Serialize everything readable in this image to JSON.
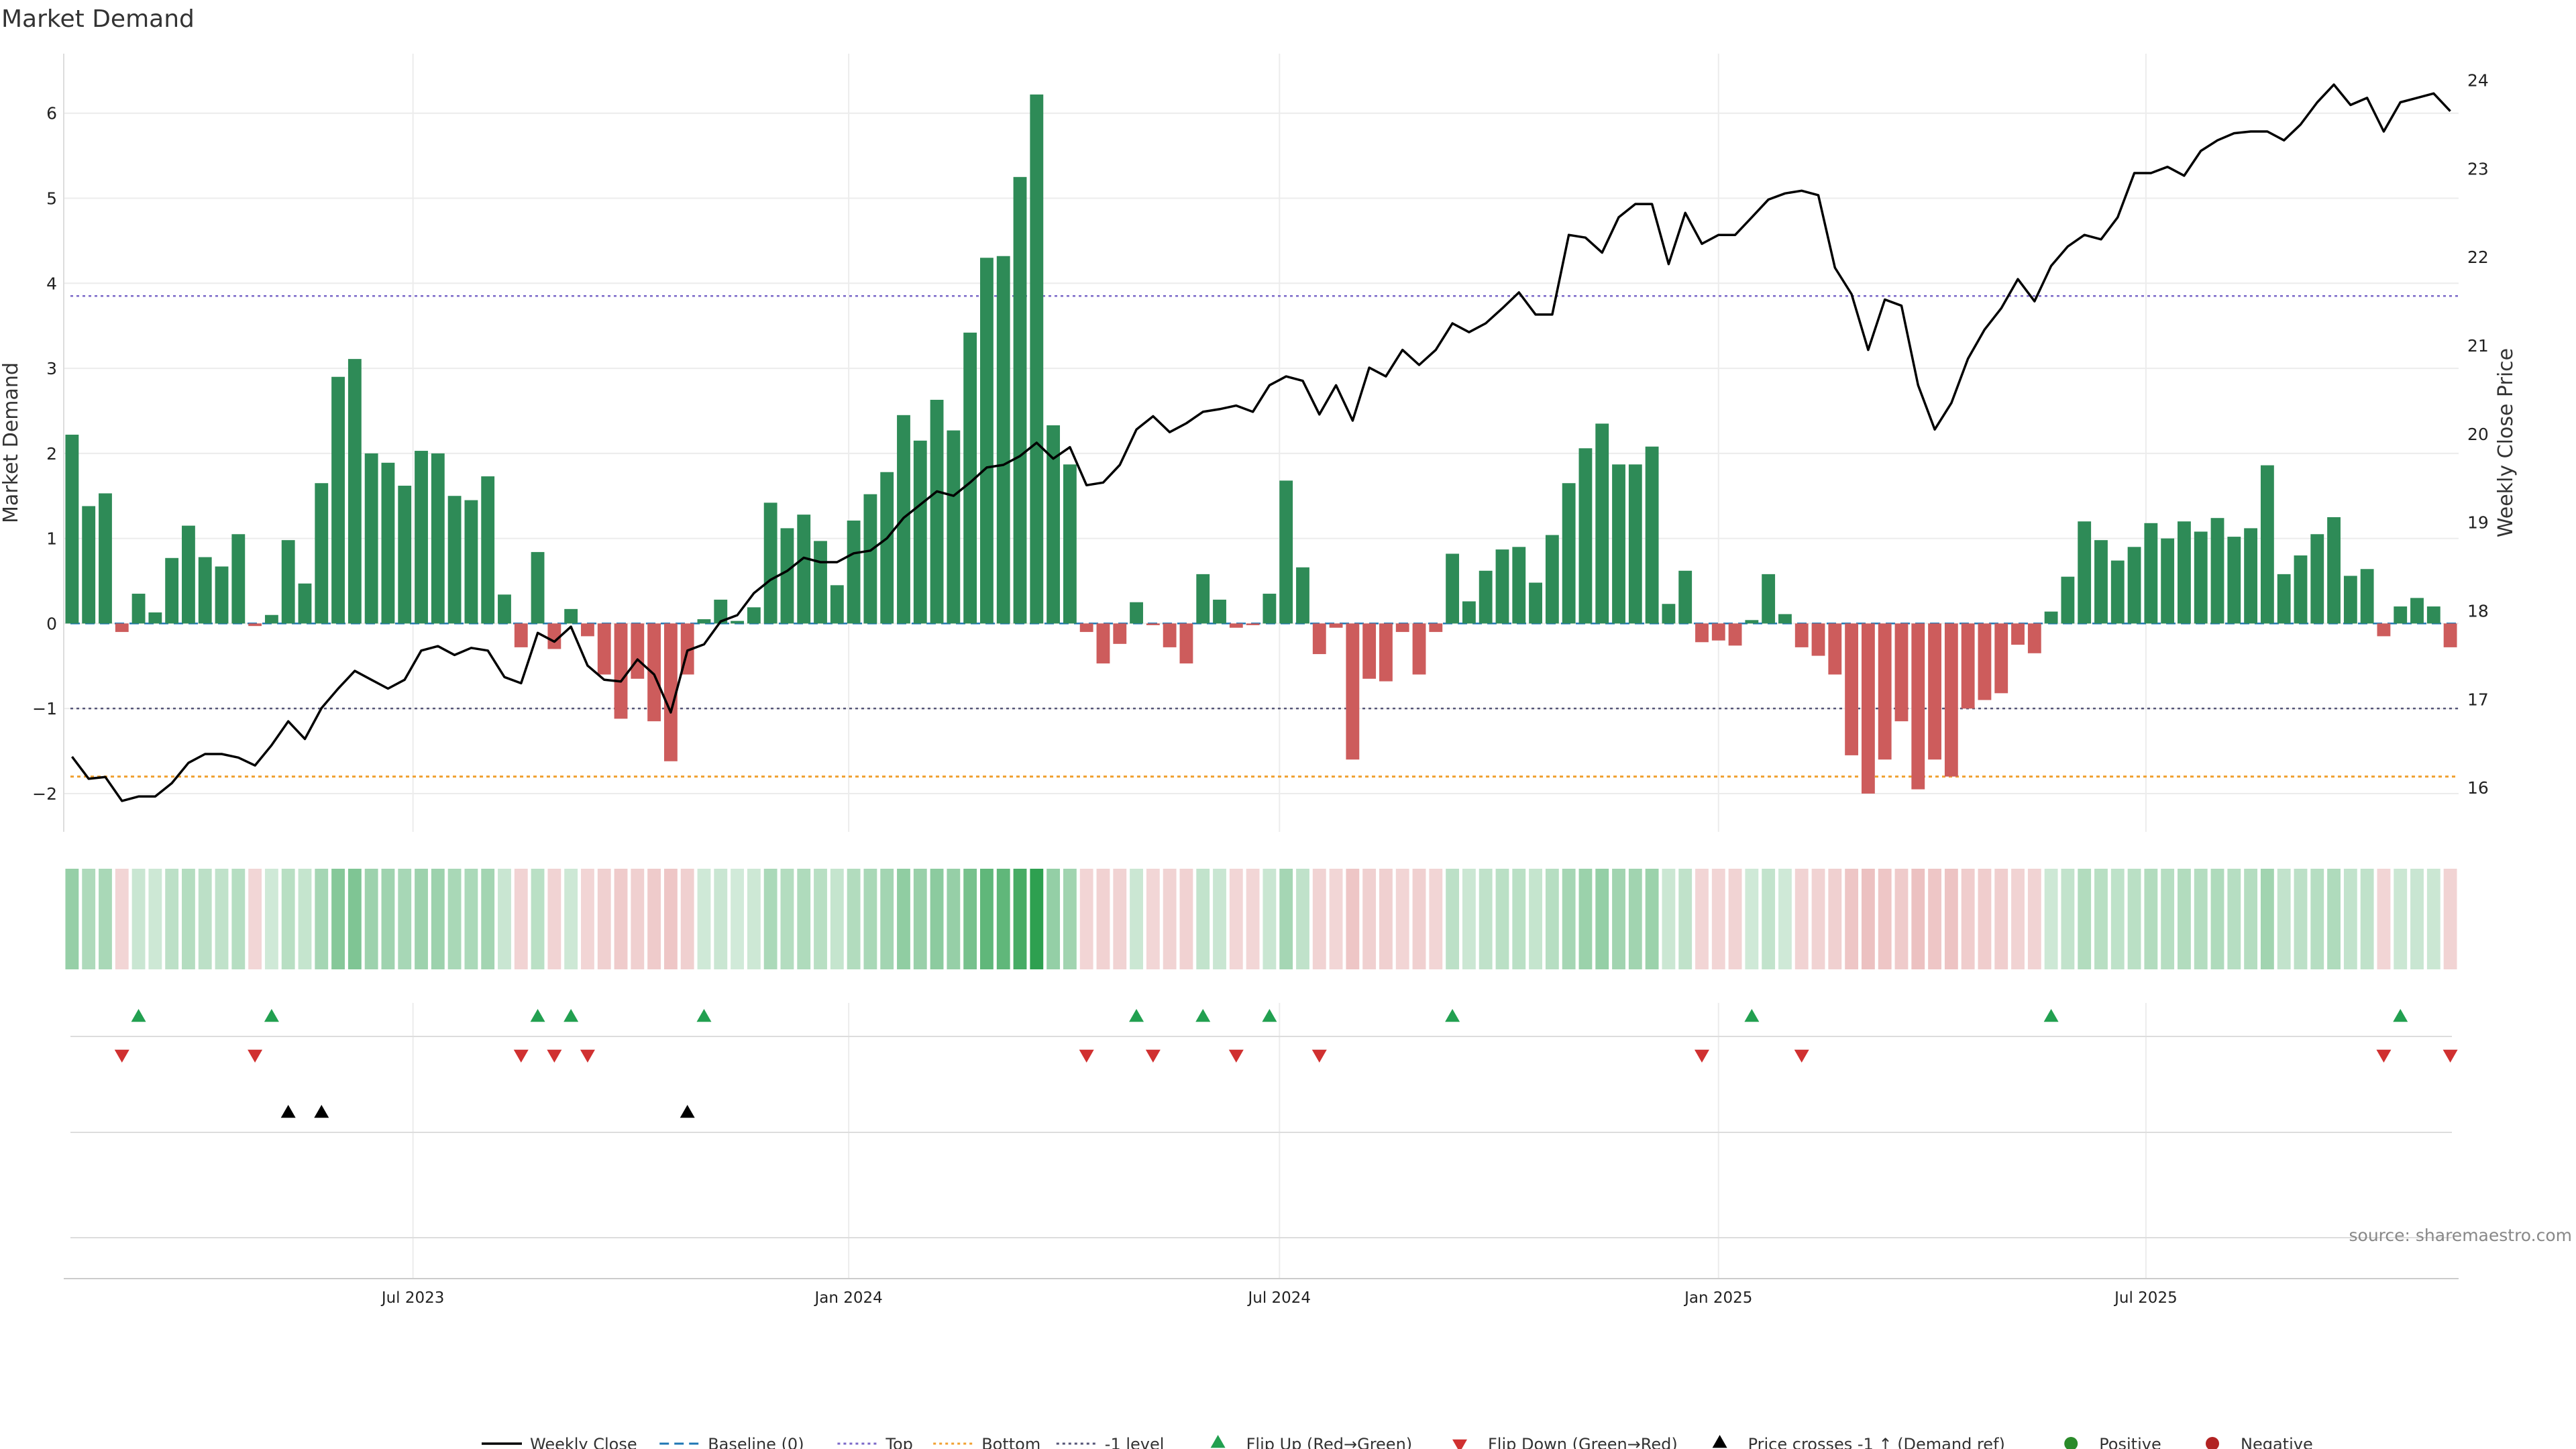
{
  "title": "Market Demand",
  "source": "source: sharemaestro.com",
  "colors": {
    "positive": "#2e8b57",
    "negative": "#cd5c5c",
    "price": "#000000",
    "baseline": "#1f77b4",
    "top": "#7b68c8",
    "bottom": "#f0a030",
    "minus1": "#555577",
    "flip_up": "#22a050",
    "flip_down": "#d03030",
    "cross": "#000000",
    "dot_positive": "#2a8a2a",
    "dot_negative": "#b22222"
  },
  "chart_data": {
    "type": "bar",
    "title": "Market Demand",
    "ylabel": "Market Demand",
    "y2label": "Weekly Close Price",
    "ylim": [
      -2.45,
      6.7
    ],
    "y2lim": [
      15.5,
      24.3
    ],
    "yticks": [
      {
        "value": -2,
        "label": "−2"
      },
      {
        "value": -1,
        "label": "−1"
      },
      {
        "value": 0,
        "label": "0"
      },
      {
        "value": 1,
        "label": "1"
      },
      {
        "value": 2,
        "label": "2"
      },
      {
        "value": 3,
        "label": "3"
      },
      {
        "value": 4,
        "label": "4"
      },
      {
        "value": 5,
        "label": "5"
      },
      {
        "value": 6,
        "label": "6"
      }
    ],
    "y2ticks": [
      16,
      17,
      18,
      19,
      20,
      21,
      22,
      23,
      24
    ],
    "xticks": [
      {
        "index": 20.5,
        "label": "Jul 2023"
      },
      {
        "index": 46.7,
        "label": "Jan 2024"
      },
      {
        "index": 72.6,
        "label": "Jul 2024"
      },
      {
        "index": 99,
        "label": "Jan 2025"
      },
      {
        "index": 124.7,
        "label": "Jul 2025"
      }
    ],
    "levels": {
      "baseline": 0,
      "top": 3.85,
      "bottom": -1.8,
      "minus1": -1
    },
    "series": [
      {
        "name": "Market Demand",
        "values": [
          2.22,
          1.38,
          1.53,
          -0.1,
          0.35,
          0.13,
          0.77,
          1.15,
          0.78,
          0.67,
          1.05,
          -0.03,
          0.1,
          0.98,
          0.47,
          1.65,
          2.9,
          3.11,
          2.0,
          1.89,
          1.62,
          2.03,
          2.0,
          1.5,
          1.45,
          1.73,
          0.34,
          -0.28,
          0.84,
          -0.3,
          0.17,
          -0.15,
          -0.6,
          -1.12,
          -0.65,
          -1.15,
          -1.62,
          -0.6,
          0.05,
          0.28,
          0.03,
          0.19,
          1.42,
          1.12,
          1.28,
          0.97,
          0.45,
          1.21,
          1.52,
          1.78,
          2.45,
          2.15,
          2.63,
          2.27,
          3.42,
          4.3,
          4.32,
          5.25,
          6.22,
          2.33,
          1.87,
          -0.1,
          -0.47,
          -0.24,
          0.25,
          -0.02,
          -0.28,
          -0.47,
          0.58,
          0.28,
          -0.05,
          -0.02,
          0.35,
          1.68,
          0.66,
          -0.36,
          -0.05,
          -1.6,
          -0.65,
          -0.68,
          -0.1,
          -0.6,
          -0.1,
          0.82,
          0.26,
          0.62,
          0.87,
          0.9,
          0.48,
          1.04,
          1.65,
          2.06,
          2.35,
          1.87,
          1.87,
          2.08,
          0.23,
          0.62,
          -0.22,
          -0.2,
          -0.26,
          0.04,
          0.58,
          0.11,
          -0.28,
          -0.38,
          -0.6,
          -1.55,
          -2.0,
          -1.6,
          -1.15,
          -1.95,
          -1.6,
          -1.8,
          -1.0,
          -0.9,
          -0.82,
          -0.25,
          -0.35,
          0.14,
          0.55,
          1.2,
          0.98,
          0.74,
          0.9,
          1.18,
          1.0,
          1.2,
          1.08,
          1.24,
          1.02,
          1.12,
          1.86,
          0.58,
          0.8,
          1.05,
          1.25,
          0.56,
          0.64,
          -0.15,
          0.2,
          0.3,
          0.2,
          -0.28
        ]
      },
      {
        "name": "Weekly Close",
        "values": [
          16.35,
          16.1,
          16.12,
          15.85,
          15.9,
          15.9,
          16.05,
          16.28,
          16.38,
          16.38,
          16.34,
          16.25,
          16.48,
          16.75,
          16.55,
          16.9,
          17.12,
          17.32,
          17.22,
          17.12,
          17.22,
          17.55,
          17.6,
          17.5,
          17.58,
          17.55,
          17.25,
          17.18,
          17.75,
          17.65,
          17.82,
          17.38,
          17.22,
          17.2,
          17.45,
          17.28,
          16.85,
          17.55,
          17.62,
          17.88,
          17.95,
          18.2,
          18.35,
          18.45,
          18.6,
          18.55,
          18.55,
          18.65,
          18.68,
          18.82,
          19.05,
          19.2,
          19.35,
          19.3,
          19.45,
          19.62,
          19.65,
          19.75,
          19.9,
          19.72,
          19.85,
          19.42,
          19.45,
          19.65,
          20.05,
          20.2,
          20.02,
          20.12,
          20.25,
          20.28,
          20.32,
          20.25,
          20.55,
          20.65,
          20.6,
          20.22,
          20.55,
          20.15,
          20.75,
          20.65,
          20.95,
          20.78,
          20.95,
          21.25,
          21.15,
          21.25,
          21.42,
          21.6,
          21.35,
          21.35,
          22.25,
          22.22,
          22.05,
          22.45,
          22.6,
          22.6,
          21.92,
          22.5,
          22.15,
          22.25,
          22.25,
          22.45,
          22.65,
          22.72,
          22.75,
          22.7,
          21.88,
          21.58,
          20.95,
          21.52,
          21.45,
          20.55,
          20.05,
          20.35,
          20.85,
          21.18,
          21.42,
          21.75,
          21.5,
          21.9,
          22.12,
          22.25,
          22.2,
          22.45,
          22.95,
          22.95,
          23.02,
          22.92,
          23.2,
          23.32,
          23.4,
          23.42,
          23.42,
          23.32,
          23.5,
          23.75,
          23.95,
          23.72,
          23.8,
          23.42,
          23.75,
          23.8,
          23.85,
          23.65
        ]
      }
    ],
    "strip": {
      "name": "Demand intensity",
      "values": "same as Market Demand series"
    },
    "flip_up_indices": [
      4,
      12,
      28,
      30,
      38,
      64,
      68,
      72,
      83,
      101,
      119,
      140
    ],
    "flip_down_indices": [
      3,
      11,
      27,
      29,
      31,
      61,
      65,
      70,
      75,
      98,
      104,
      139,
      143
    ],
    "price_cross_indices": [
      13,
      15,
      37
    ],
    "legend": [
      {
        "key": "price",
        "label": "Weekly Close",
        "symbol": "line-solid"
      },
      {
        "key": "baseline",
        "label": "Baseline (0)",
        "symbol": "line-dashed"
      },
      {
        "key": "top",
        "label": "Top",
        "symbol": "line-dotted"
      },
      {
        "key": "bottom",
        "label": "Bottom",
        "symbol": "line-dotted"
      },
      {
        "key": "minus1",
        "label": "-1 level",
        "symbol": "line-dotted"
      },
      {
        "key": "flip_up",
        "label": "Flip Up (Red→Green)",
        "symbol": "triangle-up"
      },
      {
        "key": "flip_down",
        "label": "Flip Down (Green→Red)",
        "symbol": "triangle-down"
      },
      {
        "key": "cross",
        "label": "Price crosses -1 ↑ (Demand ref)",
        "symbol": "triangle-up"
      },
      {
        "key": "dot_positive",
        "label": "Positive",
        "symbol": "dot"
      },
      {
        "key": "dot_negative",
        "label": "Negative",
        "symbol": "dot"
      }
    ]
  }
}
